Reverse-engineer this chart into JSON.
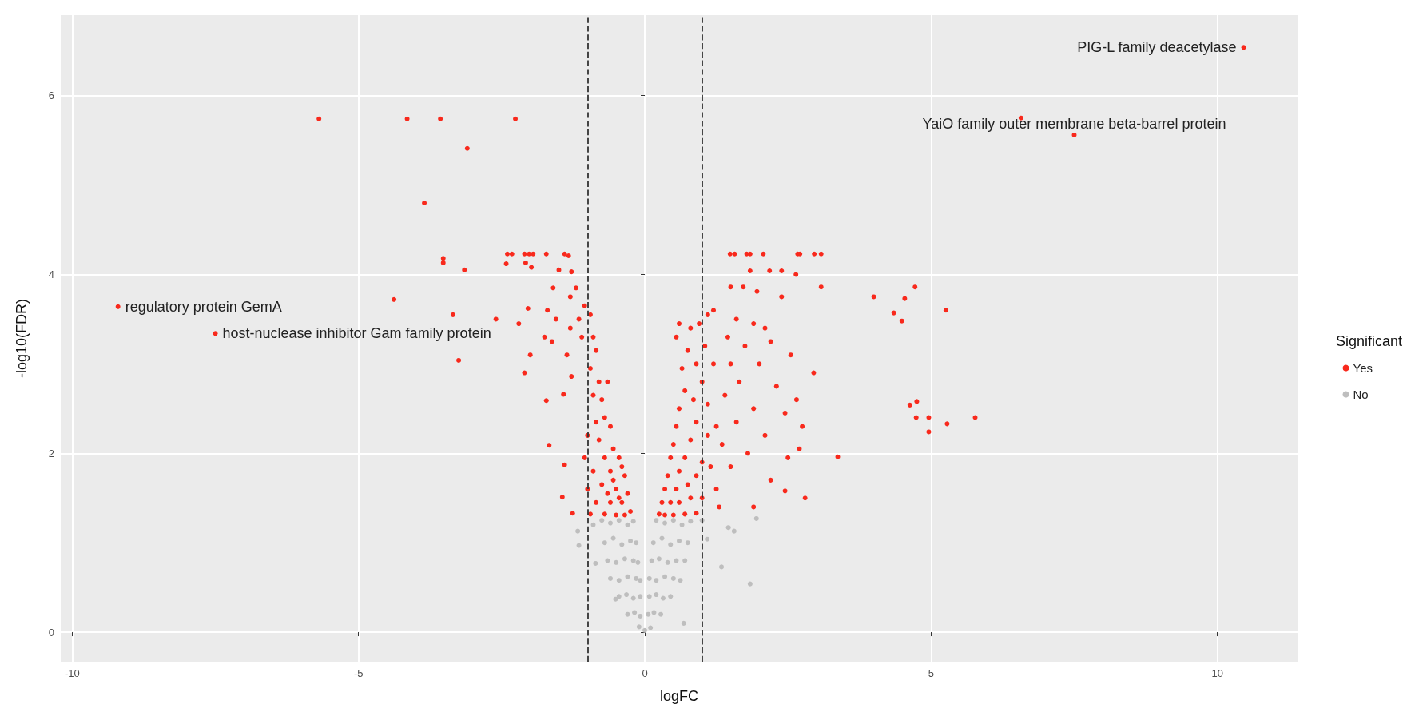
{
  "chart_data": {
    "type": "scatter",
    "xlabel": "logFC",
    "ylabel": "-log10(FDR)",
    "legend_title": "Significant",
    "legend": "right",
    "grid": true,
    "marker": "circle",
    "xlim": [
      -10.2,
      11.4
    ],
    "ylim": [
      -0.33,
      6.9
    ],
    "xticks": [
      -10,
      -5,
      0,
      5,
      10
    ],
    "yticks": [
      0,
      2,
      4,
      6
    ],
    "ref_lines": [
      {
        "axis": "x",
        "value": -1,
        "line_style": "dashed",
        "color": "#333333"
      },
      {
        "axis": "x",
        "value": 1,
        "line_style": "dashed",
        "color": "#333333"
      }
    ],
    "annotations": [
      {
        "text": "PIG-L family deacetylase",
        "x": 10.46,
        "y": 6.54
      },
      {
        "text": "YaiO family outer membrane beta-barrel protein",
        "x": 7.5,
        "y": 5.56
      },
      {
        "text": "regulatory protein GemA",
        "x": -9.2,
        "y": 3.64
      },
      {
        "text": "host-nuclease inhibitor Gam family protein",
        "x": -7.5,
        "y": 3.34
      }
    ],
    "series": [
      {
        "name": "Yes",
        "color": "#f8291c",
        "x": [
          -5.69,
          -4.15,
          -3.57,
          -2.26,
          -3.1,
          -3.85,
          -3.52,
          -3.52,
          -3.15,
          -4.38,
          -3.35,
          -2.6,
          -3.25,
          -9.2,
          -7.5,
          -2.4,
          -2.32,
          -2.1,
          -2.02,
          -1.95,
          -1.72,
          -1.4,
          -1.33,
          -2.42,
          -2.08,
          -1.98,
          -1.5,
          -1.28,
          -2.04,
          -1.7,
          -2.2,
          -1.75,
          -1.62,
          -2.0,
          -2.1,
          -1.36,
          -1.28,
          -1.42,
          -1.72,
          -1.67,
          -1.44,
          -1.26,
          -1.4,
          -1.3,
          -1.2,
          -1.6,
          -1.15,
          -1.1,
          -1.05,
          -1.55,
          -1.3,
          -0.95,
          -0.9,
          -0.85,
          -0.95,
          -0.8,
          -0.9,
          -0.75,
          -0.65,
          -0.7,
          -0.85,
          -1.0,
          -0.6,
          -0.8,
          -0.55,
          -1.05,
          -0.7,
          -0.45,
          -0.9,
          -0.6,
          -0.35,
          -1.0,
          -0.75,
          -0.5,
          -0.3,
          -0.85,
          -0.6,
          -0.4,
          -0.25,
          -0.95,
          -0.7,
          -0.5,
          -0.35,
          -0.55,
          -0.45,
          -0.65,
          -0.4,
          0.25,
          0.35,
          0.5,
          0.7,
          0.9,
          0.3,
          0.45,
          0.6,
          0.8,
          1.0,
          0.35,
          0.55,
          0.75,
          0.4,
          0.6,
          0.9,
          0.45,
          0.7,
          1.0,
          1.15,
          0.5,
          0.8,
          1.1,
          0.55,
          0.9,
          1.25,
          0.6,
          0.85,
          1.1,
          0.7,
          1.0,
          0.65,
          0.9,
          1.2,
          0.75,
          1.05,
          0.55,
          0.8,
          0.6,
          0.95,
          1.1,
          1.2,
          1.25,
          1.3,
          1.49,
          1.57,
          1.78,
          1.84,
          2.07,
          2.67,
          2.71,
          2.96,
          3.08,
          1.84,
          2.18,
          2.39,
          2.64,
          1.5,
          1.72,
          3.08,
          1.96,
          2.39,
          1.6,
          1.9,
          2.1,
          1.45,
          1.75,
          2.2,
          2.55,
          1.5,
          2.0,
          2.95,
          1.65,
          2.3,
          1.4,
          2.65,
          1.9,
          2.45,
          1.6,
          2.75,
          2.1,
          1.35,
          2.7,
          1.8,
          2.5,
          1.5,
          2.2,
          2.45,
          2.8,
          1.9,
          4.0,
          4.72,
          4.54,
          4.35,
          4.49,
          5.26,
          4.63,
          4.75,
          4.74,
          4.96,
          4.96,
          5.28,
          5.77,
          3.37,
          6.57,
          7.5,
          10.46
        ],
        "values": [
          5.74,
          5.74,
          5.74,
          5.74,
          5.41,
          4.8,
          4.18,
          4.13,
          4.05,
          3.72,
          3.55,
          3.5,
          3.04,
          3.64,
          3.34,
          4.23,
          4.23,
          4.23,
          4.23,
          4.23,
          4.23,
          4.23,
          4.21,
          4.12,
          4.13,
          4.08,
          4.05,
          4.03,
          3.62,
          3.6,
          3.45,
          3.3,
          3.25,
          3.1,
          2.9,
          3.1,
          2.86,
          2.66,
          2.59,
          2.09,
          1.51,
          1.33,
          1.87,
          3.75,
          3.85,
          3.85,
          3.5,
          3.3,
          3.65,
          3.5,
          3.4,
          3.55,
          3.3,
          3.15,
          2.95,
          2.8,
          2.65,
          2.6,
          2.8,
          2.4,
          2.35,
          2.2,
          2.3,
          2.15,
          2.05,
          1.95,
          1.95,
          1.95,
          1.8,
          1.8,
          1.75,
          1.6,
          1.65,
          1.6,
          1.55,
          1.45,
          1.45,
          1.45,
          1.35,
          1.32,
          1.32,
          1.31,
          1.31,
          1.7,
          1.5,
          1.55,
          1.85,
          1.32,
          1.31,
          1.31,
          1.32,
          1.33,
          1.45,
          1.45,
          1.45,
          1.5,
          1.5,
          1.6,
          1.6,
          1.65,
          1.75,
          1.8,
          1.75,
          1.95,
          1.95,
          1.9,
          1.85,
          2.1,
          2.15,
          2.2,
          2.3,
          2.35,
          2.3,
          2.5,
          2.6,
          2.55,
          2.7,
          2.8,
          2.95,
          3.0,
          3.0,
          3.15,
          3.2,
          3.3,
          3.4,
          3.45,
          3.45,
          3.55,
          3.6,
          1.6,
          1.4,
          4.23,
          4.23,
          4.23,
          4.23,
          4.23,
          4.23,
          4.23,
          4.23,
          4.23,
          4.04,
          4.04,
          4.04,
          4.0,
          3.86,
          3.86,
          3.86,
          3.81,
          3.75,
          3.5,
          3.45,
          3.4,
          3.3,
          3.2,
          3.25,
          3.1,
          3.0,
          3.0,
          2.9,
          2.8,
          2.75,
          2.65,
          2.6,
          2.5,
          2.45,
          2.35,
          2.3,
          2.2,
          2.1,
          2.05,
          2.0,
          1.95,
          1.85,
          1.7,
          1.58,
          1.5,
          1.4,
          3.75,
          3.86,
          3.73,
          3.57,
          3.48,
          3.6,
          2.54,
          2.58,
          2.4,
          2.4,
          2.24,
          2.33,
          2.4,
          1.96,
          5.75,
          5.56,
          6.54
        ]
      },
      {
        "name": "No",
        "color": "#bebebe",
        "x": [
          -0.75,
          -0.6,
          -0.45,
          -0.3,
          -0.2,
          0.2,
          0.35,
          0.5,
          0.65,
          0.8,
          -0.7,
          -0.55,
          -0.4,
          -0.25,
          -0.15,
          0.15,
          0.3,
          0.45,
          0.6,
          0.75,
          -0.65,
          -0.5,
          -0.35,
          -0.2,
          -0.12,
          0.12,
          0.25,
          0.4,
          0.55,
          0.7,
          -0.6,
          -0.45,
          -0.3,
          -0.15,
          -0.08,
          0.08,
          0.2,
          0.35,
          0.5,
          0.62,
          -0.45,
          -0.32,
          -0.2,
          -0.08,
          0.08,
          0.2,
          0.32,
          0.45,
          -0.3,
          -0.18,
          -0.08,
          0.06,
          0.16,
          0.28,
          -0.1,
          0,
          0.1,
          1.95,
          1.46,
          1.56,
          1.34,
          1.84,
          0.68,
          -1.17,
          -1.15,
          -0.86,
          -0.51,
          1.09,
          -0.9,
          1.0
        ],
        "values": [
          1.25,
          1.22,
          1.25,
          1.2,
          1.24,
          1.25,
          1.22,
          1.25,
          1.2,
          1.24,
          1.0,
          1.05,
          0.98,
          1.02,
          1.0,
          1.0,
          1.05,
          0.98,
          1.02,
          1.0,
          0.8,
          0.78,
          0.82,
          0.8,
          0.78,
          0.8,
          0.82,
          0.78,
          0.8,
          0.8,
          0.6,
          0.58,
          0.62,
          0.6,
          0.58,
          0.6,
          0.58,
          0.62,
          0.6,
          0.58,
          0.4,
          0.42,
          0.38,
          0.4,
          0.4,
          0.42,
          0.38,
          0.4,
          0.2,
          0.22,
          0.18,
          0.2,
          0.22,
          0.2,
          0.06,
          0.02,
          0.05,
          1.27,
          1.17,
          1.13,
          0.73,
          0.54,
          0.1,
          1.13,
          0.97,
          0.77,
          0.37,
          1.04,
          1.2,
          1.25
        ]
      }
    ]
  }
}
